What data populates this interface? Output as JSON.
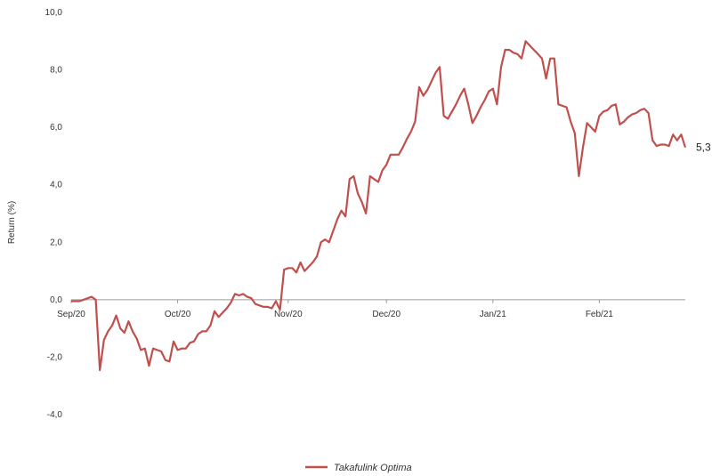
{
  "chart_data": {
    "type": "line",
    "ylabel": "Return (%)",
    "ylim": [
      -4,
      10
    ],
    "yticks": [
      "10,0",
      "8,0",
      "6,0",
      "4,0",
      "2,0",
      "0,0",
      "-2,0",
      "-4,0"
    ],
    "ytick_values": [
      10,
      8,
      6,
      4,
      2,
      0,
      -2,
      -4
    ],
    "xlim": [
      0,
      150
    ],
    "xticks": [
      {
        "label": "Sep/20",
        "x": 0
      },
      {
        "label": "Oct/20",
        "x": 26
      },
      {
        "label": "Nov/20",
        "x": 53
      },
      {
        "label": "Dec/20",
        "x": 77
      },
      {
        "label": "Jan/21",
        "x": 103
      },
      {
        "label": "Feb/21",
        "x": 129
      }
    ],
    "grid": false,
    "legend": "bottom-center",
    "end_label": "5,3",
    "series": [
      {
        "name": "Takafulink Optima",
        "color": "#c0504d",
        "x": [
          0,
          2,
          3,
          4,
          5,
          6,
          7,
          8,
          9,
          10,
          11,
          12,
          13,
          14,
          15,
          16,
          17,
          18,
          19,
          20,
          21,
          22,
          23,
          24,
          25,
          26,
          27,
          28,
          29,
          30,
          31,
          32,
          33,
          34,
          35,
          36,
          37,
          38,
          39,
          40,
          41,
          42,
          43,
          44,
          45,
          46,
          47,
          48,
          49,
          50,
          51,
          52,
          53,
          54,
          55,
          56,
          57,
          58,
          59,
          60,
          61,
          62,
          63,
          64,
          65,
          66,
          67,
          68,
          69,
          70,
          71,
          72,
          73,
          74,
          75,
          76,
          77,
          78,
          79,
          80,
          81,
          82,
          83,
          84,
          85,
          86,
          87,
          88,
          89,
          90,
          91,
          92,
          93,
          94,
          95,
          96,
          97,
          98,
          99,
          100,
          101,
          102,
          103,
          104,
          105,
          106,
          107,
          108,
          109,
          110,
          111,
          112,
          113,
          114,
          115,
          116,
          117,
          118,
          119,
          120,
          121,
          122,
          123,
          124,
          125,
          126,
          127,
          128,
          129,
          130,
          131,
          132,
          133,
          134,
          135,
          136,
          137,
          138,
          139,
          140,
          141,
          142,
          143,
          144,
          145,
          146,
          147,
          148,
          149,
          150
        ],
        "values": [
          -0.05,
          -0.05,
          0.0,
          0.05,
          0.1,
          0.0,
          -2.45,
          -1.4,
          -1.1,
          -0.9,
          -0.55,
          -1.0,
          -1.15,
          -0.75,
          -1.1,
          -1.35,
          -1.75,
          -1.7,
          -2.3,
          -1.7,
          -1.75,
          -1.8,
          -2.1,
          -2.15,
          -1.45,
          -1.75,
          -1.7,
          -1.7,
          -1.5,
          -1.45,
          -1.2,
          -1.1,
          -1.1,
          -0.9,
          -0.4,
          -0.6,
          -0.45,
          -0.3,
          -0.1,
          0.2,
          0.15,
          0.2,
          0.1,
          0.05,
          -0.15,
          -0.2,
          -0.25,
          -0.25,
          -0.3,
          -0.05,
          -0.35,
          1.05,
          1.1,
          1.1,
          0.95,
          1.3,
          1.0,
          1.15,
          1.3,
          1.5,
          2.0,
          2.1,
          2.0,
          2.4,
          2.8,
          3.1,
          2.9,
          4.2,
          4.3,
          3.7,
          3.4,
          3.0,
          4.3,
          4.2,
          4.1,
          4.5,
          4.7,
          5.05,
          5.05,
          5.05,
          5.3,
          5.6,
          5.85,
          6.2,
          7.4,
          7.1,
          7.3,
          7.6,
          7.9,
          8.1,
          6.4,
          6.3,
          6.55,
          6.8,
          7.1,
          7.35,
          6.8,
          6.15,
          6.4,
          6.7,
          6.95,
          7.25,
          7.35,
          6.8,
          8.1,
          8.7,
          8.7,
          8.6,
          8.55,
          8.4,
          9.0,
          8.85,
          8.7,
          8.55,
          8.4,
          7.7,
          8.4,
          8.4,
          6.8,
          6.75,
          6.7,
          6.2,
          5.8,
          4.3,
          5.3,
          6.15,
          6.0,
          5.85,
          6.4,
          6.55,
          6.6,
          6.75,
          6.8,
          6.1,
          6.2,
          6.35,
          6.45,
          6.5,
          6.6,
          6.65,
          6.5,
          5.55,
          5.35,
          5.4,
          5.4,
          5.35,
          5.75,
          5.55,
          5.75,
          5.3
        ]
      }
    ]
  }
}
